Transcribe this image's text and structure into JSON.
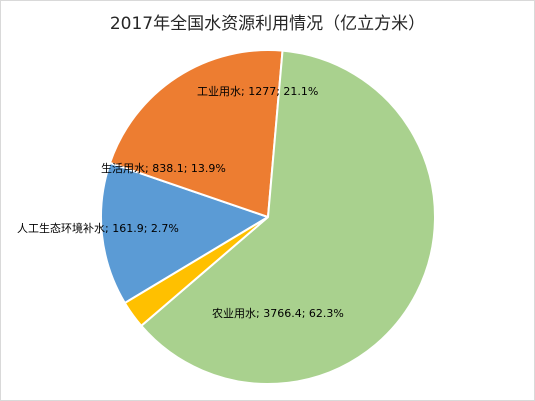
{
  "chart_data": {
    "type": "pie",
    "title": "2017年全国水资源利用情况（亿立方米）",
    "slices": [
      {
        "label": "生活用水",
        "value": 838.1,
        "percent": "13.9%",
        "color": "#5b9bd5"
      },
      {
        "label": "工业用水",
        "value": 1277,
        "percent": "21.1%",
        "color": "#ed7d31"
      },
      {
        "label": "农业用水",
        "value": 3766.4,
        "percent": "62.3%",
        "color": "#a9d18e"
      },
      {
        "label": "人工生态环境补水",
        "value": 161.9,
        "percent": "2.7%",
        "color": "#ffc000"
      }
    ],
    "start_angle_deg": 239
  }
}
